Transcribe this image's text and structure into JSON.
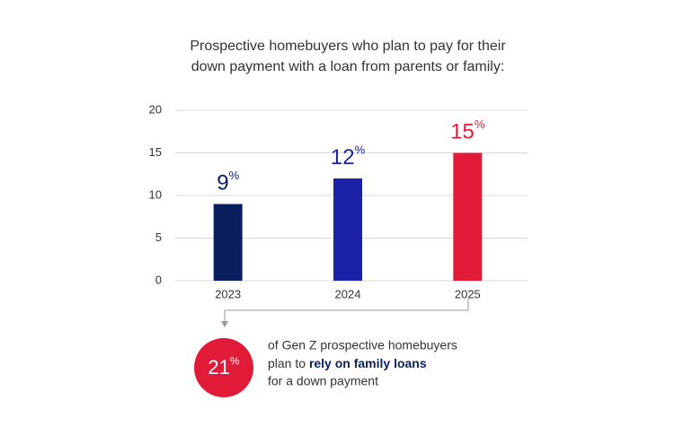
{
  "chart_data": {
    "type": "bar",
    "title": [
      "Prospective homebuyers who plan to pay for their",
      "down payment with a loan from parents or family:"
    ],
    "categories": [
      "2023",
      "2024",
      "2025"
    ],
    "values": [
      9,
      12,
      15
    ],
    "value_labels": [
      "9%",
      "12%",
      "15%"
    ],
    "colors": [
      "#0b1f5e",
      "#1b22a8",
      "#e11a38"
    ],
    "ylim": [
      0,
      20
    ],
    "yticks": [
      0,
      5,
      10,
      15,
      20
    ],
    "grid": true,
    "callout": {
      "figure": "21%",
      "lines": [
        "of Gen Z prospective homebuyers",
        "plan to",
        "rely on family loans",
        "for a down payment"
      ]
    }
  }
}
